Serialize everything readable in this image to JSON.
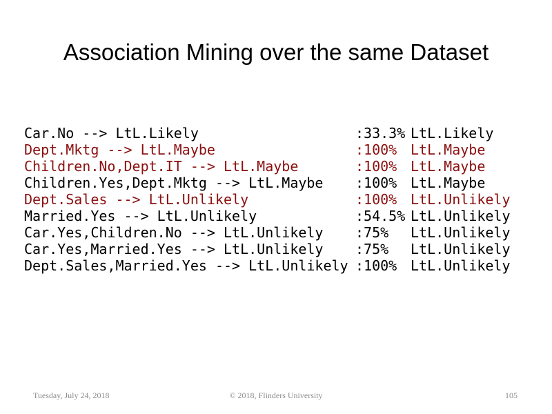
{
  "header": {
    "title": "Association Mining over the same Dataset"
  },
  "rules": [
    {
      "rule": "Car.No --> LtL.Likely",
      "confidence": ":33.3%",
      "consequent": "LtL.Likely",
      "color": "#000000"
    },
    {
      "rule": "Dept.Mktg --> LtL.Maybe",
      "confidence": ":100%",
      "consequent": "LtL.Maybe",
      "color": "#8b0f0f"
    },
    {
      "rule": "Children.No,Dept.IT --> LtL.Maybe",
      "confidence": ":100%",
      "consequent": "LtL.Maybe",
      "color": "#8b0f0f"
    },
    {
      "rule": "Children.Yes,Dept.Mktg --> LtL.Maybe",
      "confidence": ":100%",
      "consequent": "LtL.Maybe",
      "color": "#000000"
    },
    {
      "rule": "Dept.Sales --> LtL.Unlikely",
      "confidence": ":100%",
      "consequent": "LtL.Unlikely",
      "color": "#8b0f0f"
    },
    {
      "rule": "Married.Yes --> LtL.Unlikely",
      "confidence": ":54.5%",
      "consequent": "LtL.Unlikely",
      "color": "#000000"
    },
    {
      "rule": "Car.Yes,Children.No --> LtL.Unlikely",
      "confidence": ":75%",
      "consequent": "LtL.Unlikely",
      "color": "#000000"
    },
    {
      "rule": "Car.Yes,Married.Yes --> LtL.Unlikely",
      "confidence": ":75%",
      "consequent": "LtL.Unlikely",
      "color": "#000000"
    },
    {
      "rule": "Dept.Sales,Married.Yes --> LtL.Unlikely",
      "confidence": ":100%",
      "consequent": "LtL.Unlikely",
      "color": "#000000"
    }
  ],
  "footer": {
    "date": "Tuesday, July 24, 2018",
    "copyright": "© 2018, Flinders University",
    "page": "105"
  }
}
